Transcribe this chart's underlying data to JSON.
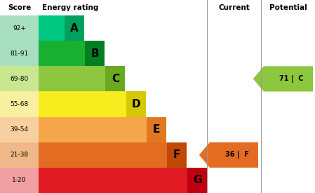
{
  "title_score": "Score",
  "title_energy": "Energy rating",
  "title_current": "Current",
  "title_potential": "Potential",
  "bands": [
    {
      "label": "A",
      "score": "92+",
      "bar_color": "#00c781",
      "label_color": "#00a060"
    },
    {
      "label": "B",
      "score": "81-91",
      "bar_color": "#19b032",
      "label_color": "#008020"
    },
    {
      "label": "C",
      "score": "69-80",
      "bar_color": "#8dc63f",
      "label_color": "#6aaa20"
    },
    {
      "label": "D",
      "score": "55-68",
      "bar_color": "#f7ec1e",
      "label_color": "#d4c800"
    },
    {
      "label": "E",
      "score": "39-54",
      "bar_color": "#f5a54a",
      "label_color": "#e07820"
    },
    {
      "label": "F",
      "score": "21-38",
      "bar_color": "#e36b22",
      "label_color": "#c04800"
    },
    {
      "label": "G",
      "score": "1-20",
      "bar_color": "#e01b22",
      "label_color": "#c00010"
    }
  ],
  "score_bg_colors": [
    "#a8dfc0",
    "#a8dfc0",
    "#c8e890",
    "#f8f0a0",
    "#f8d0a0",
    "#f0b888",
    "#f0a0a0"
  ],
  "current_value": 36,
  "current_label": "F",
  "current_band_index": 5,
  "current_color": "#e36b22",
  "potential_value": 71,
  "potential_label": "C",
  "potential_band_index": 2,
  "potential_color": "#8dc63f",
  "background_color": "#ffffff",
  "divider_color": "#999999"
}
